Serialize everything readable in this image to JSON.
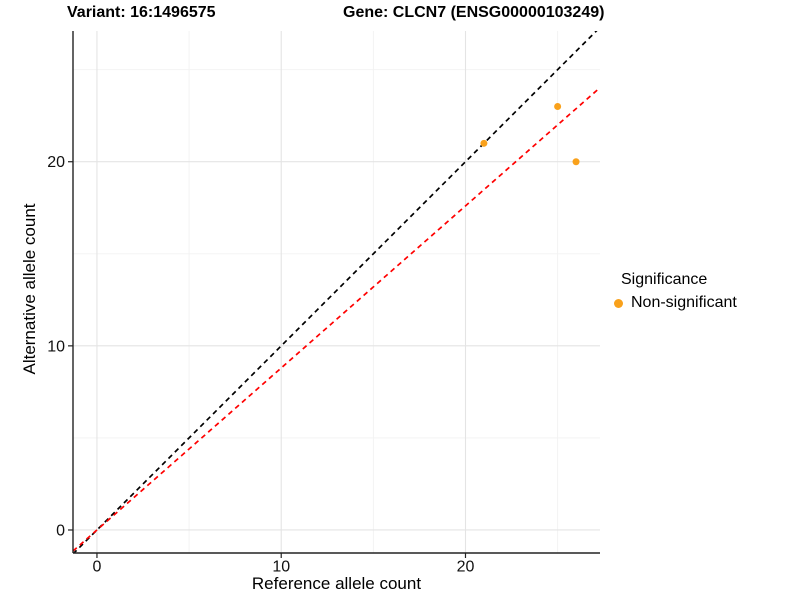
{
  "chart_data": {
    "type": "scatter",
    "title_left": "Variant: 16:1496575",
    "title_right": "Gene: CLCN7 (ENSG00000103249)",
    "xlabel": "Reference allele count",
    "ylabel": "Alternative allele count",
    "xlim": [
      -1.3,
      27.3
    ],
    "ylim": [
      -1.25,
      27.1
    ],
    "xticks": [
      0,
      10,
      20
    ],
    "yticks": [
      0,
      10,
      20
    ],
    "xticks_minor": [
      5,
      15,
      25
    ],
    "yticks_minor": [
      5,
      15,
      25
    ],
    "grid": true,
    "points": [
      {
        "x": 21,
        "y": 21,
        "label": "Non-significant"
      },
      {
        "x": 25,
        "y": 23,
        "label": "Non-significant"
      },
      {
        "x": 26,
        "y": 20,
        "label": "Non-significant"
      }
    ],
    "point_color": "#F9A11B",
    "lines": [
      {
        "name": "identity-line",
        "slope": 1,
        "intercept": 0,
        "color": "#000000",
        "style": "dashed"
      },
      {
        "name": "fit-line",
        "slope": 0.88,
        "intercept": 0,
        "color": "#FF0000",
        "style": "dashed"
      }
    ],
    "legend": {
      "title": "Significance",
      "position": "right",
      "items": [
        {
          "label": "Non-significant",
          "color": "#F9A11B"
        }
      ]
    }
  },
  "colors": {
    "background": "#FFFFFF",
    "grid_major": "#E4E4E4",
    "grid_minor": "#F2F2F2",
    "axis_line": "#222222",
    "tick_label": "#111111"
  }
}
